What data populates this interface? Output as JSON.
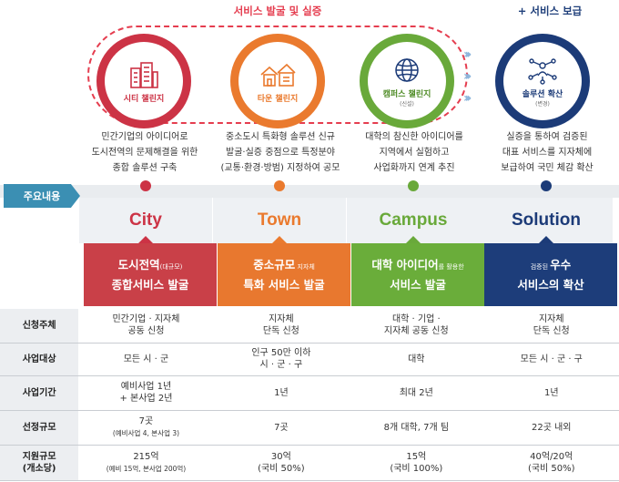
{
  "top": {
    "verify_label": "서비스 발굴 및 실증",
    "spread_label": "+ 서비스 보급"
  },
  "colors": {
    "city": "#cc3345",
    "town": "#ea7a2e",
    "campus": "#69a93a",
    "solution": "#1c3b78",
    "tag": "#3b8fb3"
  },
  "challenges": [
    {
      "name": "시티 챌린지",
      "sub": "",
      "icon": "city-buildings-icon"
    },
    {
      "name": "타운 챌린지",
      "sub": "",
      "icon": "town-houses-icon"
    },
    {
      "name": "캠퍼스 챌린지",
      "sub": "(신설)",
      "icon": "globe-icon"
    },
    {
      "name": "솔루션 확산",
      "sub": "(변경)",
      "icon": "network-people-icon"
    }
  ],
  "descriptions": [
    [
      "민간기업의 아이디어로",
      "도시전역의 문제해결을 위한",
      "종합 솔루션 구축"
    ],
    [
      "중소도시 특화형 솔루션 신규",
      "발굴·실증 중점으로 특정분야",
      "(교통·환경·방범) 지정하여 공모"
    ],
    [
      "대학의 참신한 아이디어를",
      "지역에서 실험하고",
      "사업화까지 연계 추진"
    ],
    [
      "실증을 통하여 검증된",
      "대표 서비스를 지자체에",
      "보급하여 국민 체감 확산"
    ]
  ],
  "main_tag": "주요내용",
  "columns": [
    {
      "title": "City",
      "cat_main": "도시전역",
      "cat_small": "(대규모)",
      "cat_line2": "종합서비스 발굴"
    },
    {
      "title": "Town",
      "cat_main": "중소규모",
      "cat_small": " 지자체",
      "cat_line2": "특화 서비스 발굴"
    },
    {
      "title": "Campus",
      "cat_main": "대학 아이디어",
      "cat_small": "를 활용한",
      "cat_line2": "서비스 발굴"
    },
    {
      "title": "Solution",
      "cat_small_pre": "검증된 ",
      "cat_main": "우수",
      "cat_line2": "서비스의 확산"
    }
  ],
  "table": {
    "rows": [
      {
        "head": "신청주체",
        "cells": [
          [
            "민간기업 · 지자체",
            "공동 신청"
          ],
          [
            "지자체",
            "단독 신청"
          ],
          [
            "대학 · 기업 ·",
            "지자체 공동 신청"
          ],
          [
            "지자체",
            "단독 신청"
          ]
        ]
      },
      {
        "head": "사업대상",
        "cells": [
          [
            "모든 시 · 군"
          ],
          [
            "인구 50만 이하",
            "시 · 군 · 구"
          ],
          [
            "대학"
          ],
          [
            "모든 시 · 군 · 구"
          ]
        ]
      },
      {
        "head": "사업기간",
        "cells": [
          [
            "예비사업 1년",
            "+ 본사업 2년"
          ],
          [
            "1년"
          ],
          [
            "최대 2년"
          ],
          [
            "1년"
          ]
        ]
      },
      {
        "head": "선정규모",
        "cells": [
          [
            "7곳",
            "(예비사업 4, 본사업 3)"
          ],
          [
            "7곳"
          ],
          [
            "8개 대학, 7개 팀"
          ],
          [
            "22곳 내외"
          ]
        ]
      },
      {
        "head": "지원규모",
        "head2": "(개소당)",
        "cells": [
          [
            "215억",
            "(예비 15억, 본사업 200억)"
          ],
          [
            "30억",
            "(국비 50%)"
          ],
          [
            "15억",
            "(국비 100%)"
          ],
          [
            "40억/20억",
            "(국비 50%)"
          ]
        ]
      }
    ]
  }
}
